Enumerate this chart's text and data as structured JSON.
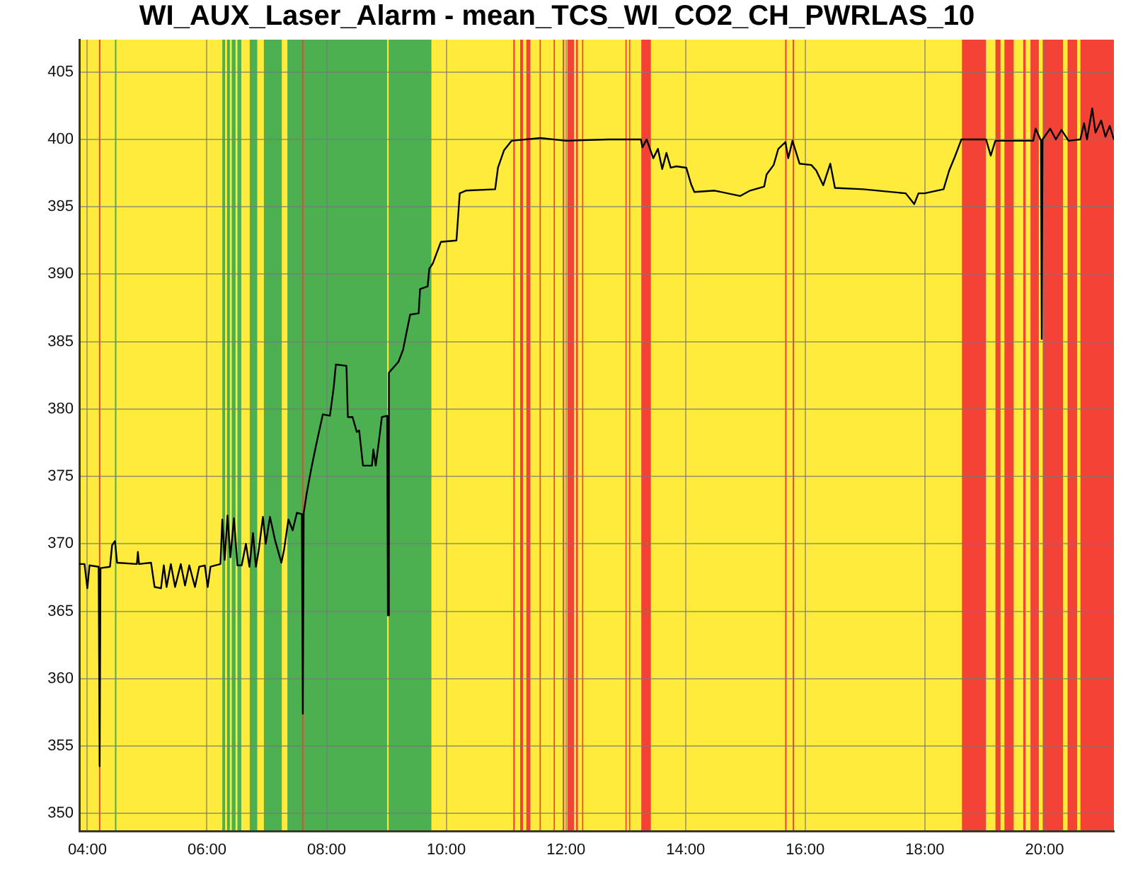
{
  "chart_data": {
    "type": "line",
    "title": "WI_AUX_Laser_Alarm - mean_TCS_WI_CO2_CH_PWRLAS_10",
    "x": [
      3.865,
      3.953,
      4.0,
      4.036,
      4.189,
      4.206,
      4.22,
      4.379,
      4.414,
      4.462,
      4.497,
      4.828,
      4.845,
      4.864,
      5.065,
      5.124,
      5.231,
      5.278,
      5.325,
      5.396,
      5.467,
      5.562,
      5.633,
      5.704,
      5.799,
      5.87,
      5.964,
      6.012,
      6.059,
      6.225,
      6.256,
      6.296,
      6.343,
      6.391,
      6.45,
      6.509,
      6.58,
      6.651,
      6.71,
      6.769,
      6.817,
      6.864,
      6.935,
      6.982,
      7.053,
      7.136,
      7.243,
      7.29,
      7.361,
      7.432,
      7.503,
      7.586,
      7.602,
      7.617,
      7.669,
      7.74,
      7.818,
      7.936,
      8.055,
      8.118,
      8.154,
      8.331,
      8.355,
      8.433,
      8.504,
      8.544,
      8.608,
      8.757,
      8.781,
      8.821,
      8.876,
      8.923,
      9.012,
      9.024,
      9.041,
      9.2,
      9.278,
      9.318,
      9.396,
      9.538,
      9.562,
      9.688,
      9.716,
      9.775,
      9.91,
      10.17,
      10.225,
      10.327,
      10.817,
      10.864,
      10.966,
      11.093,
      11.574,
      12.0,
      12.71,
      13.254,
      13.278,
      13.349,
      13.46,
      13.538,
      13.609,
      13.68,
      13.751,
      13.846,
      14.012,
      14.09,
      14.147,
      14.485,
      14.911,
      15.077,
      15.314,
      15.354,
      15.472,
      15.55,
      15.669,
      15.716,
      15.787,
      15.905,
      16.102,
      16.183,
      16.301,
      16.419,
      16.497,
      16.97,
      17.68,
      17.822,
      17.893,
      17.995,
      18.312,
      18.407,
      18.509,
      18.611,
      19.022,
      19.101,
      19.178,
      19.811,
      19.851,
      19.941,
      19.953,
      19.967,
      20.095,
      20.189,
      20.284,
      20.402,
      20.598,
      20.661,
      20.71,
      20.797,
      20.852,
      20.947,
      21.018,
      21.089,
      21.16
    ],
    "values": [
      368.5,
      368.5,
      366.7,
      368.4,
      368.3,
      353.5,
      368.2,
      368.3,
      369.9,
      370.2,
      368.6,
      368.5,
      369.4,
      368.5,
      368.6,
      366.8,
      366.7,
      368.4,
      366.8,
      368.5,
      366.8,
      368.5,
      366.9,
      368.4,
      366.8,
      368.3,
      368.4,
      366.8,
      368.3,
      368.5,
      371.8,
      368.8,
      372.1,
      369.0,
      371.9,
      368.4,
      368.4,
      370.0,
      368.3,
      370.8,
      368.3,
      369.5,
      372.0,
      370.0,
      372.0,
      370.3,
      368.6,
      369.6,
      371.8,
      371.0,
      372.3,
      372.2,
      357.4,
      372.3,
      373.8,
      375.5,
      377.2,
      379.6,
      379.5,
      381.6,
      383.3,
      383.2,
      379.4,
      379.4,
      378.3,
      378.4,
      375.8,
      375.8,
      377.0,
      375.8,
      377.7,
      379.4,
      379.5,
      364.7,
      382.7,
      383.5,
      384.4,
      385.3,
      387.0,
      387.1,
      388.9,
      389.1,
      390.4,
      390.8,
      392.4,
      392.5,
      396.0,
      396.2,
      396.3,
      397.9,
      399.2,
      399.9,
      400.1,
      399.9,
      400.0,
      400.0,
      399.4,
      400.0,
      398.6,
      399.3,
      397.8,
      399.0,
      397.9,
      398.0,
      397.9,
      396.7,
      396.1,
      396.2,
      395.8,
      396.2,
      396.5,
      397.4,
      398.1,
      399.3,
      399.8,
      398.6,
      399.9,
      398.2,
      398.1,
      397.7,
      396.6,
      398.2,
      396.4,
      396.3,
      396.0,
      395.2,
      396.0,
      396.0,
      396.3,
      397.7,
      398.8,
      400.0,
      400.0,
      398.8,
      399.9,
      399.9,
      400.8,
      399.9,
      385.2,
      400.0,
      400.8,
      400.0,
      400.7,
      399.9,
      400.0,
      401.2,
      400.0,
      402.3,
      400.5,
      401.4,
      400.2,
      401.0,
      400.0
    ],
    "color": "#000000",
    "xlim": [
      3.865,
      21.16
    ],
    "ylim": [
      348.7,
      407.4
    ],
    "xticks": [
      {
        "value": 4,
        "label": "04:00"
      },
      {
        "value": 6,
        "label": "06:00"
      },
      {
        "value": 8,
        "label": "08:00"
      },
      {
        "value": 10,
        "label": "10:00"
      },
      {
        "value": 12,
        "label": "12:00"
      },
      {
        "value": 14,
        "label": "14:00"
      },
      {
        "value": 16,
        "label": "16:00"
      },
      {
        "value": 18,
        "label": "18:00"
      },
      {
        "value": 20,
        "label": "20:00"
      }
    ],
    "yticks": [
      350,
      355,
      360,
      365,
      370,
      375,
      380,
      385,
      390,
      395,
      400,
      405
    ],
    "grid": true,
    "legend": false,
    "bands": [
      {
        "axis": "x",
        "from": 3.865,
        "to": 21.16,
        "color": "#ffeb3b"
      },
      {
        "axis": "x",
        "from": 4.462,
        "to": 4.486,
        "color": "#4caf50"
      },
      {
        "axis": "x",
        "from": 6.256,
        "to": 6.303,
        "color": "#4caf50"
      },
      {
        "axis": "x",
        "from": 6.336,
        "to": 6.383,
        "color": "#4caf50"
      },
      {
        "axis": "x",
        "from": 6.414,
        "to": 6.478,
        "color": "#4caf50"
      },
      {
        "axis": "x",
        "from": 6.509,
        "to": 6.573,
        "color": "#4caf50"
      },
      {
        "axis": "x",
        "from": 6.715,
        "to": 6.84,
        "color": "#4caf50"
      },
      {
        "axis": "x",
        "from": 6.951,
        "to": 7.25,
        "color": "#4caf50"
      },
      {
        "axis": "x",
        "from": 7.344,
        "to": 9.012,
        "color": "#4caf50"
      },
      {
        "axis": "x",
        "from": 9.036,
        "to": 9.751,
        "color": "#4caf50"
      },
      {
        "axis": "x",
        "from": 4.194,
        "to": 4.218,
        "color": "#f44336"
      },
      {
        "axis": "x",
        "from": 7.59,
        "to": 7.614,
        "color": "#f44336"
      },
      {
        "axis": "x",
        "from": 11.12,
        "to": 11.145,
        "color": "#f44336"
      },
      {
        "axis": "x",
        "from": 11.235,
        "to": 11.282,
        "color": "#f44336"
      },
      {
        "axis": "x",
        "from": 11.338,
        "to": 11.405,
        "color": "#f44336"
      },
      {
        "axis": "x",
        "from": 11.56,
        "to": 11.58,
        "color": "#f44336"
      },
      {
        "axis": "x",
        "from": 11.795,
        "to": 11.815,
        "color": "#f44336"
      },
      {
        "axis": "x",
        "from": 11.945,
        "to": 11.97,
        "color": "#f44336"
      },
      {
        "axis": "x",
        "from": 12.024,
        "to": 12.135,
        "color": "#f44336"
      },
      {
        "axis": "x",
        "from": 12.17,
        "to": 12.2,
        "color": "#f44336"
      },
      {
        "axis": "x",
        "from": 12.27,
        "to": 12.29,
        "color": "#f44336"
      },
      {
        "axis": "x",
        "from": 12.995,
        "to": 13.015,
        "color": "#f44336"
      },
      {
        "axis": "x",
        "from": 13.055,
        "to": 13.075,
        "color": "#f44336"
      },
      {
        "axis": "x",
        "from": 13.26,
        "to": 13.42,
        "color": "#f44336"
      },
      {
        "axis": "x",
        "from": 15.664,
        "to": 15.688,
        "color": "#f44336"
      },
      {
        "axis": "x",
        "from": 15.791,
        "to": 15.815,
        "color": "#f44336"
      },
      {
        "axis": "x",
        "from": 18.62,
        "to": 19.02,
        "color": "#f44336"
      },
      {
        "axis": "x",
        "from": 19.18,
        "to": 19.265,
        "color": "#f44336"
      },
      {
        "axis": "x",
        "from": 19.33,
        "to": 19.485,
        "color": "#f44336"
      },
      {
        "axis": "x",
        "from": 19.645,
        "to": 19.685,
        "color": "#f44336"
      },
      {
        "axis": "x",
        "from": 19.765,
        "to": 19.905,
        "color": "#f44336"
      },
      {
        "axis": "x",
        "from": 19.97,
        "to": 20.31,
        "color": "#f44336"
      },
      {
        "axis": "x",
        "from": 20.385,
        "to": 20.545,
        "color": "#f44336"
      },
      {
        "axis": "x",
        "from": 20.6,
        "to": 21.16,
        "color": "#f44336"
      }
    ]
  }
}
